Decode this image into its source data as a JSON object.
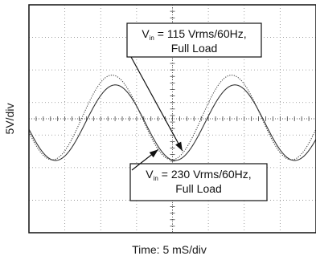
{
  "chart_data": {
    "type": "line",
    "title": "",
    "xlabel": "Time: 5 mS/div",
    "ylabel": "5V/div",
    "x_unit": "ms",
    "y_unit": "V",
    "x_divisions": 8,
    "y_divisions": 7,
    "x_range_ms": [
      0,
      40
    ],
    "y_range_v": [
      -17.5,
      17.5
    ],
    "grid": true,
    "grid_style": "dotted",
    "series": [
      {
        "name": "Vin = 115 Vrms/60Hz, Full Load",
        "frequency_hz": 60,
        "amplitude_v": 6.5,
        "offset_v": 0.2,
        "phase_deg": 200,
        "color": "#444444",
        "dash": "dotted"
      },
      {
        "name": "Vin = 230 Vrms/60Hz, Full Load",
        "frequency_hz": 60,
        "amplitude_v": 5.8,
        "offset_v": -0.6,
        "phase_deg": 190,
        "color": "#333333",
        "dash": "solid"
      }
    ],
    "annotations": [
      {
        "series_index": 0,
        "lines": [
          "V",
          "in",
          " = 115 Vrms/60Hz,",
          "Full Load"
        ],
        "box_position": "top-center",
        "arrow_target_ms": 21.5
      },
      {
        "series_index": 1,
        "lines": [
          "V",
          "in",
          " = 230 Vrms/60Hz,",
          "Full Load"
        ],
        "box_position": "bottom-center",
        "arrow_target_ms": 18.2
      }
    ],
    "style": {
      "frame_color": "#111111",
      "grid_color": "#8a8a8a",
      "background": "#ffffff"
    }
  }
}
